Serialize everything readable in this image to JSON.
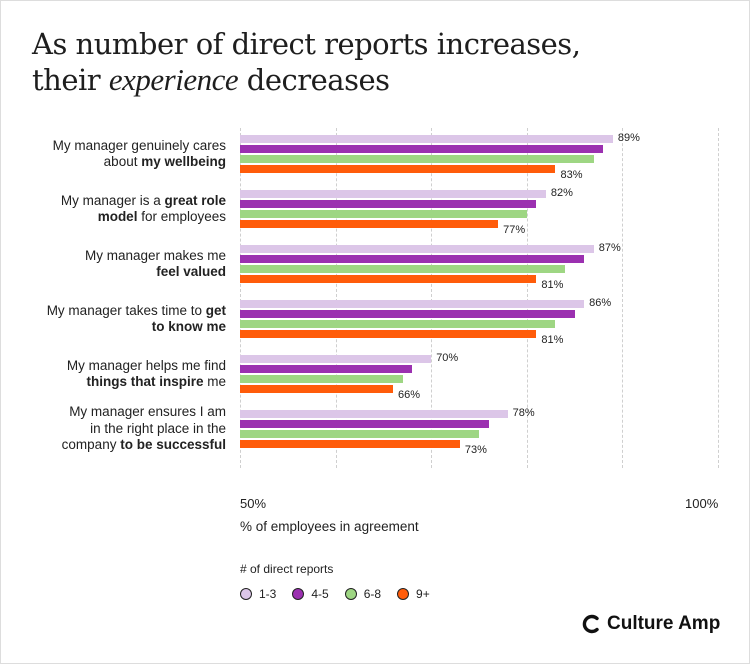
{
  "title": {
    "line1": "As number of direct reports increases,",
    "line2_pre": "their ",
    "line2_em": "experience",
    "line2_post": " decreases"
  },
  "logo": "Culture Amp",
  "colors": {
    "1-3": "#dcc6e8",
    "4-5": "#9b30b0",
    "6-8": "#9ed683",
    "9+": "#ff5c0a"
  },
  "chart_data": {
    "type": "bar",
    "orientation": "horizontal",
    "xlabel": "% of employees in agreement",
    "xlim": [
      50,
      100
    ],
    "xticks": [
      "50%",
      "100%"
    ],
    "grid": true,
    "legend_title": "# of direct reports",
    "legend_position": "bottom-left",
    "categories": [
      [
        [
          [
            "My manager genuinely cares",
            false
          ]
        ],
        [
          [
            "about ",
            false
          ],
          [
            "my wellbeing",
            true
          ]
        ]
      ],
      [
        [
          [
            "My manager is a ",
            false
          ],
          [
            "great role",
            true
          ]
        ],
        [
          [
            "model",
            true
          ],
          [
            " for employees",
            false
          ]
        ]
      ],
      [
        [
          [
            "My manager makes me",
            false
          ]
        ],
        [
          [
            "feel valued",
            true
          ]
        ]
      ],
      [
        [
          [
            "My manager takes time to ",
            false
          ],
          [
            "get",
            true
          ]
        ],
        [
          [
            "to know me",
            true
          ]
        ]
      ],
      [
        [
          [
            "My manager helps me find",
            false
          ]
        ],
        [
          [
            "things that inspire",
            true
          ],
          [
            " me",
            false
          ]
        ]
      ],
      [
        [
          [
            "My manager ensures I am",
            false
          ]
        ],
        [
          [
            "in the right place in the",
            false
          ]
        ],
        [
          [
            "company ",
            false
          ],
          [
            "to be successful",
            true
          ]
        ]
      ]
    ],
    "series": [
      {
        "name": "1-3",
        "values": [
          89,
          82,
          87,
          86,
          70,
          78
        ],
        "labels": [
          "89%",
          "82%",
          "87%",
          "86%",
          "70%",
          "78%"
        ]
      },
      {
        "name": "4-5",
        "values": [
          88,
          81,
          86,
          85,
          68,
          76
        ],
        "labels": [
          null,
          null,
          null,
          null,
          null,
          null
        ]
      },
      {
        "name": "6-8",
        "values": [
          87,
          80,
          84,
          83,
          67,
          75
        ],
        "labels": [
          null,
          null,
          null,
          null,
          null,
          null
        ]
      },
      {
        "name": "9+",
        "values": [
          83,
          77,
          81,
          81,
          66,
          73
        ],
        "labels": [
          "83%",
          "77%",
          "81%",
          "81%",
          "66%",
          "73%"
        ]
      }
    ]
  }
}
